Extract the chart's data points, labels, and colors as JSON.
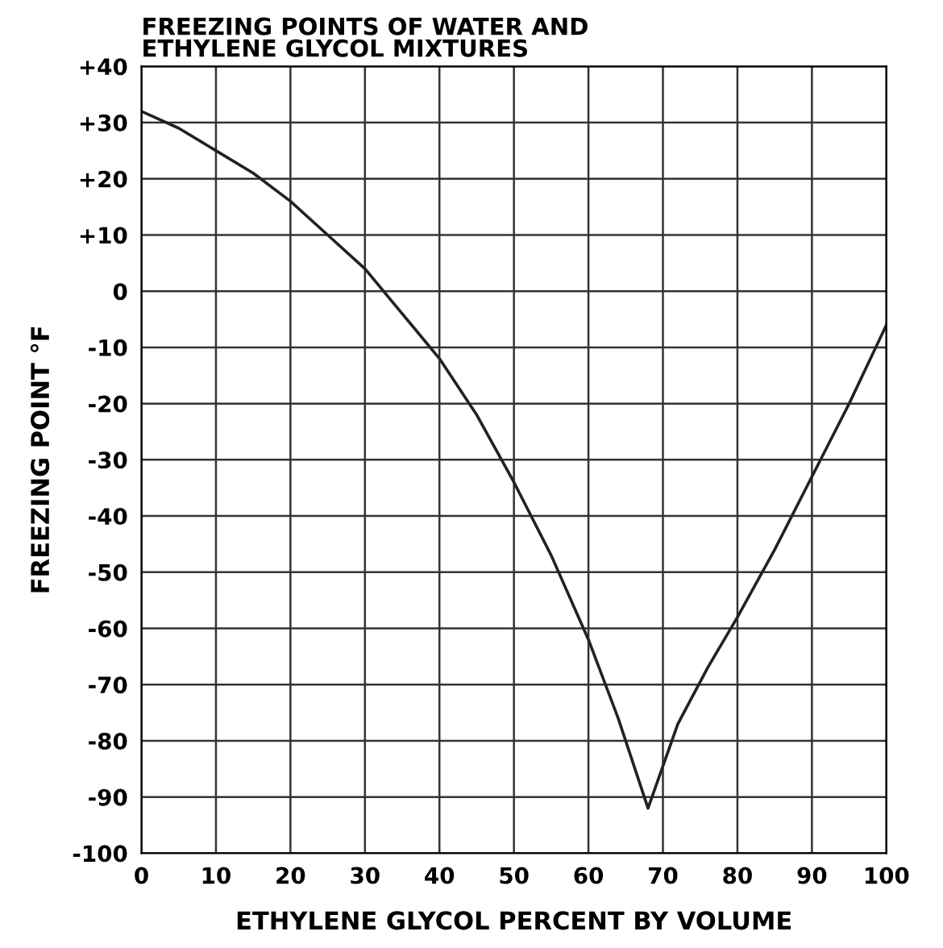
{
  "chart_data": {
    "type": "line",
    "title": "FREEZING POINTS OF WATER AND\nETHYLENE GLYCOL MIXTURES",
    "xlabel": "ETHYLENE GLYCOL PERCENT BY VOLUME",
    "ylabel": "FREEZING POINT °F",
    "x": [
      0,
      5,
      10,
      15,
      20,
      25,
      30,
      35,
      40,
      45,
      50,
      55,
      60,
      64,
      68,
      72,
      76,
      80,
      85,
      90,
      95,
      100
    ],
    "series": [
      {
        "color": "#222222",
        "values": [
          32,
          29,
          25,
          21,
          16,
          10,
          4,
          -4,
          -12,
          -22,
          -34,
          -47,
          -62,
          -76,
          -92,
          -77,
          -67,
          -58,
          -46,
          -33,
          -20,
          -6
        ]
      }
    ],
    "xlim": [
      0,
      100
    ],
    "xticks": [
      0,
      10,
      20,
      30,
      40,
      50,
      60,
      70,
      80,
      90,
      100
    ],
    "ylim": [
      -100,
      40
    ],
    "yticks": [
      {
        "value": 40,
        "label": "+40"
      },
      {
        "value": 30,
        "label": "+30"
      },
      {
        "value": 20,
        "label": "+20"
      },
      {
        "value": 10,
        "label": "+10"
      },
      0,
      {
        "value": -10,
        "label": "-10"
      },
      {
        "value": -20,
        "label": "-20"
      },
      {
        "value": -30,
        "label": "-30"
      },
      {
        "value": -40,
        "label": "-40"
      },
      {
        "value": -50,
        "label": "-50"
      },
      {
        "value": -60,
        "label": "-60"
      },
      {
        "value": -70,
        "label": "-70"
      },
      {
        "value": -80,
        "label": "-80"
      },
      {
        "value": -90,
        "label": "-90"
      },
      {
        "value": -100,
        "label": "-100"
      }
    ],
    "grid": true,
    "marker": "none",
    "line_style": "solid"
  }
}
